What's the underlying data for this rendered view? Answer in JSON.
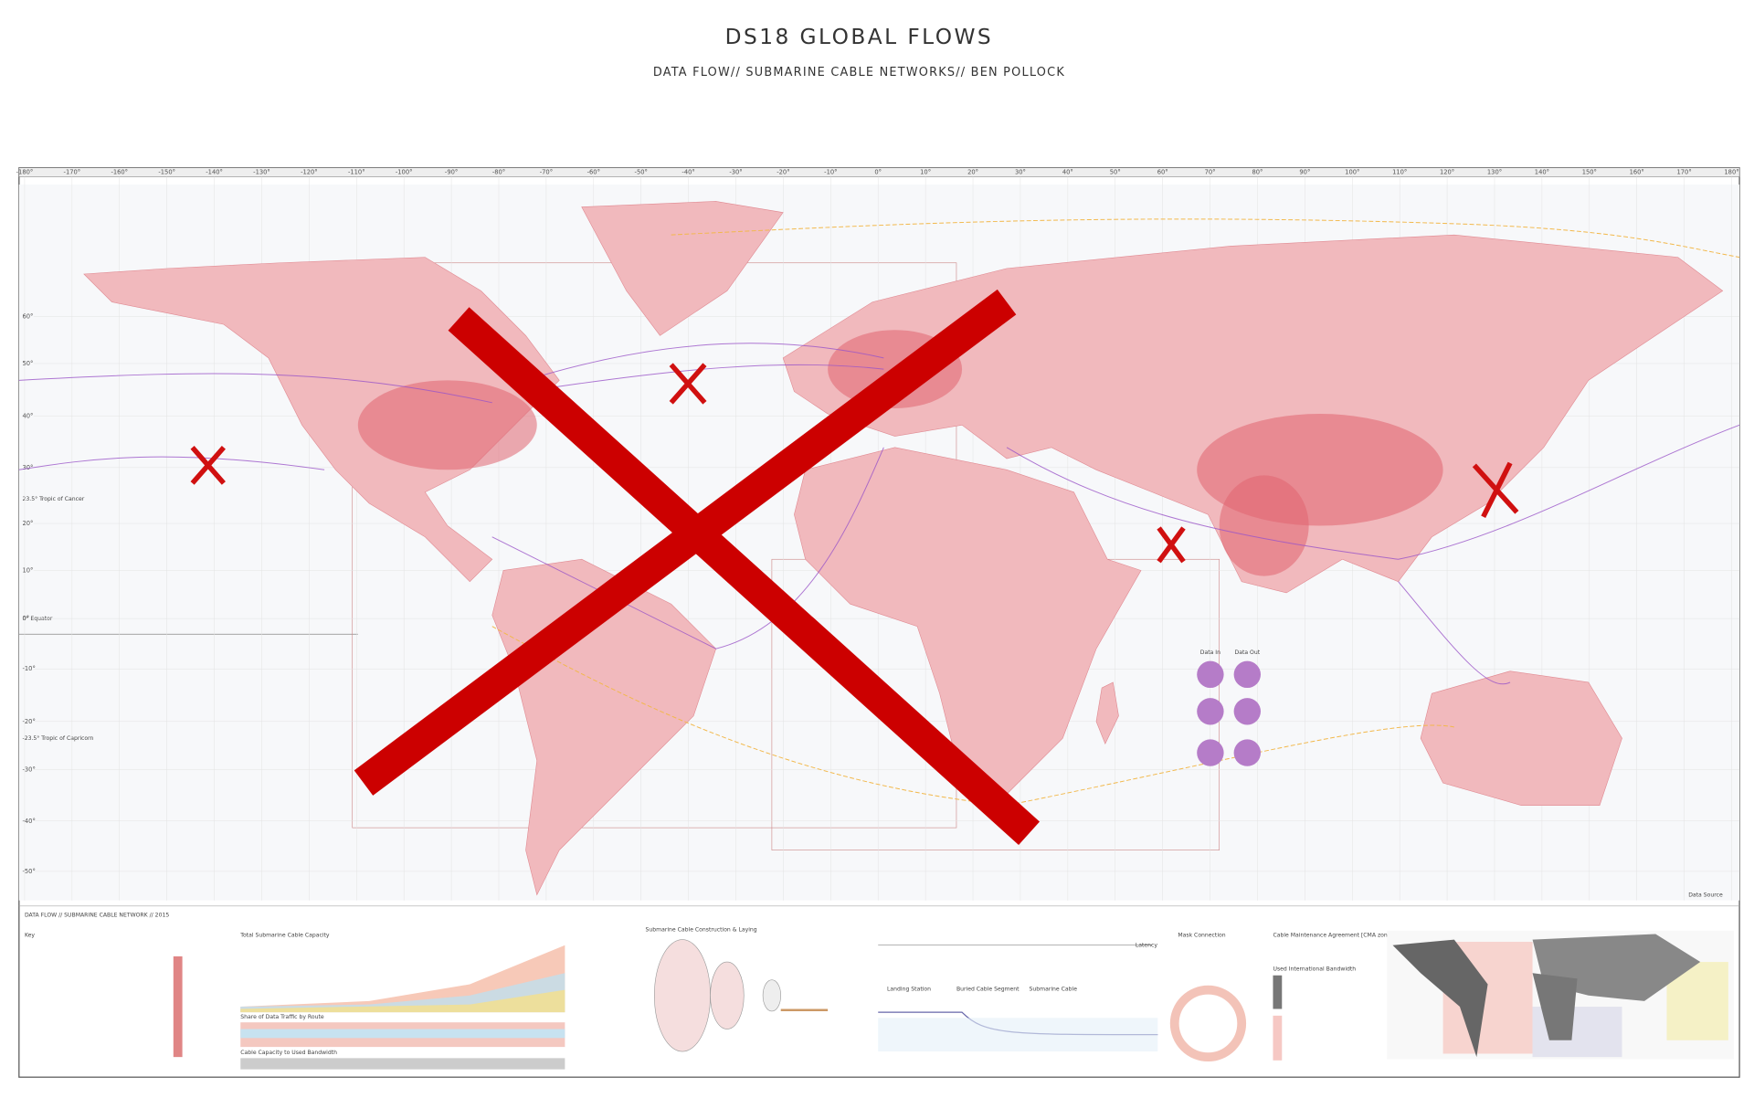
{
  "header": {
    "title": "DS18 GLOBAL FLOWS",
    "subtitle": "DATA FLOW// SUBMARINE CABLE NETWORKS// BEN POLLOCK"
  },
  "map": {
    "longitude_labels": [
      "-180°",
      "-170°",
      "-160°",
      "-150°",
      "-140°",
      "-130°",
      "-120°",
      "-110°",
      "-100°",
      "-90°",
      "-80°",
      "-70°",
      "-60°",
      "-50°",
      "-40°",
      "-30°",
      "-20°",
      "-10°",
      "0°",
      "10°",
      "20°",
      "30°",
      "40°",
      "50°",
      "60°",
      "70°",
      "80°",
      "90°",
      "100°",
      "110°",
      "120°",
      "130°",
      "140°",
      "150°",
      "160°",
      "170°",
      "180°"
    ],
    "latitude_labels": [
      "60°",
      "50°",
      "40°",
      "30°",
      "20°",
      "10°",
      "0°",
      "-10°",
      "-20°",
      "-30°",
      "-40°",
      "-50°"
    ],
    "tropic_of_cancer": "23.5° Tropic of Cancer",
    "equator": "0° Equator",
    "tropic_of_capricorn": "-23.5° Tropic of Capricorn",
    "data_in": "Data In",
    "data_out": "Data Out",
    "data_source": "Data Source"
  },
  "panel": {
    "heading": "DATA FLOW // SUBMARINE CABLE NETWORK // 2015",
    "key": "Key",
    "capacity_title": "Total Submarine Cable Capacity",
    "share_title": "Share of Data Traffic by Route",
    "bandwidth_title": "Cable Capacity to Used Bandwidth",
    "construction_title": "Submarine Cable Construction & Laying",
    "latency": "Latency",
    "landing_station": "Landing Station",
    "buried_segment": "Buried Cable Segment",
    "submarine_cable": "Submarine Cable",
    "mask_connection": "Mask Connection",
    "cma_title": "Cable Maintenance Agreement [CMA zones]",
    "used_bandwidth": "Used International Bandwidth"
  }
}
